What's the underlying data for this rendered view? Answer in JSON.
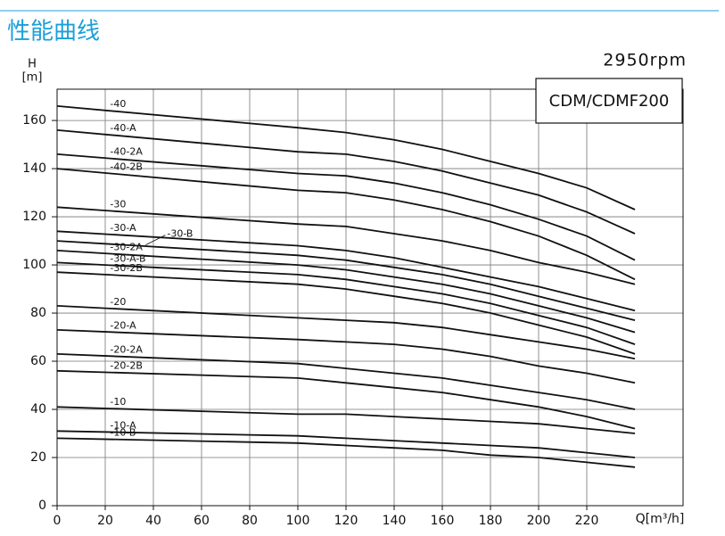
{
  "chart_data": {
    "type": "line",
    "title": "性能曲线",
    "subtitle": "2950rpm",
    "model": "CDM/CDMF200",
    "y_label": "H",
    "y_unit": "[m]",
    "x_label": "Q[m³/h]",
    "x": [
      0,
      100,
      120,
      140,
      160,
      180,
      200,
      220,
      240
    ],
    "series": [
      {
        "name": "-40",
        "values": [
          166,
          157,
          155,
          152,
          148,
          143,
          138,
          132,
          123
        ]
      },
      {
        "name": "-40-A",
        "values": [
          156,
          147,
          146,
          143,
          139,
          134,
          129,
          122,
          113
        ]
      },
      {
        "name": "-40-2A",
        "values": [
          146,
          138,
          137,
          134,
          130,
          125,
          119,
          112,
          102
        ]
      },
      {
        "name": "-40-2B",
        "values": [
          140,
          131,
          130,
          127,
          123,
          118,
          112,
          104,
          94
        ]
      },
      {
        "name": "-30",
        "values": [
          124,
          117,
          116,
          113,
          110,
          106,
          101,
          97,
          92
        ]
      },
      {
        "name": "-30-A",
        "values": [
          114,
          108,
          106,
          103,
          99,
          95,
          91,
          86,
          81
        ]
      },
      {
        "name": "-30-B",
        "values": [
          110,
          104,
          102,
          99,
          96,
          92,
          87,
          82,
          77
        ]
      },
      {
        "name": "-30-2A",
        "values": [
          106,
          100,
          98,
          95,
          92,
          88,
          83,
          78,
          72
        ]
      },
      {
        "name": "-30-A-B",
        "values": [
          101,
          96,
          94,
          91,
          88,
          84,
          79,
          74,
          67
        ]
      },
      {
        "name": "-30-2B",
        "values": [
          97,
          92,
          90,
          87,
          84,
          80,
          75,
          70,
          63
        ]
      },
      {
        "name": "-20",
        "values": [
          83,
          78,
          77,
          76,
          74,
          71,
          68,
          65,
          61
        ]
      },
      {
        "name": "-20-A",
        "values": [
          73,
          69,
          68,
          67,
          65,
          62,
          58,
          55,
          51
        ]
      },
      {
        "name": "-20-2A",
        "values": [
          63,
          59,
          57,
          55,
          53,
          50,
          47,
          44,
          40
        ]
      },
      {
        "name": "-20-2B",
        "values": [
          56,
          53,
          51,
          49,
          47,
          44,
          41,
          37,
          32
        ]
      },
      {
        "name": "-10",
        "values": [
          41,
          38,
          38,
          37,
          36,
          35,
          34,
          32,
          30
        ]
      },
      {
        "name": "-10-A",
        "values": [
          31,
          29,
          28,
          27,
          26,
          25,
          24,
          22,
          20
        ]
      },
      {
        "name": "-10-B",
        "values": [
          28,
          26,
          25,
          24,
          23,
          21,
          20,
          18,
          16
        ]
      }
    ],
    "color": "#111111",
    "xlim": [
      0,
      260
    ],
    "xticks": [
      0,
      20,
      40,
      60,
      80,
      100,
      120,
      140,
      160,
      180,
      200,
      220
    ],
    "ylim": [
      0,
      173
    ],
    "yticks": [
      0,
      20,
      40,
      60,
      80,
      100,
      120,
      140,
      160
    ],
    "grid": true
  }
}
